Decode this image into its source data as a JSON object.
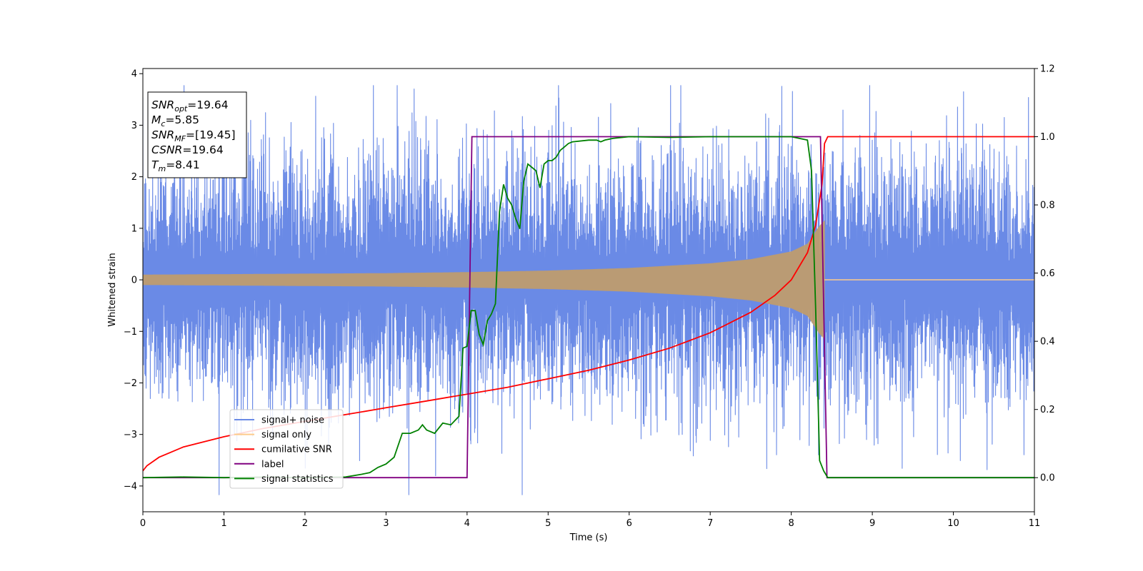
{
  "chart_data": {
    "type": "line",
    "xlabel": "Time (s)",
    "ylabel": "Whitened strain",
    "xlim": [
      0,
      11
    ],
    "ylim_left": [
      -4.5,
      4.1
    ],
    "ylim_right": [
      -0.1,
      1.2
    ],
    "x_ticks": [
      0,
      1,
      2,
      3,
      4,
      5,
      6,
      7,
      8,
      9,
      10,
      11
    ],
    "y_ticks_left": [
      -4,
      -3,
      -2,
      -1,
      0,
      1,
      2,
      3,
      4
    ],
    "y_tick_labels_left": [
      "−4",
      "−3",
      "−2",
      "−1",
      "0",
      "1",
      "2",
      "3",
      "4"
    ],
    "y_ticks_right": [
      0.0,
      0.2,
      0.4,
      0.6,
      0.8,
      1.0,
      1.2
    ],
    "y_tick_labels_right": [
      "0.0",
      "0.2",
      "0.4",
      "0.6",
      "0.8",
      "1.0",
      "1.2"
    ],
    "legend_position": "lower-left",
    "colors": {
      "noise": "#6a8ae6",
      "signal": "#fdcb8b",
      "signal_overlap": "#bf9c6e",
      "csnr": "#ff0000",
      "label": "#800080",
      "stats": "#008000"
    },
    "annotation": {
      "lines": [
        {
          "sym": "SNR",
          "sub": "opt",
          "val": "=19.64"
        },
        {
          "sym": "M",
          "sub": "c",
          "val": "=5.85"
        },
        {
          "sym": "SNR",
          "sub": "MF",
          "val": "=[19.45]"
        },
        {
          "sym": "CSNR",
          "sub": "",
          "val": "=19.64"
        },
        {
          "sym": "T",
          "sub": "m",
          "val": "=8.41"
        }
      ]
    },
    "series": [
      {
        "name": "signal+ noise",
        "axis": "left",
        "kind": "noise",
        "amplitude_envelope": 2.9,
        "max_peak": 3.77,
        "min_peak": -4.17
      },
      {
        "name": "signal only",
        "axis": "left",
        "kind": "chirp",
        "t_merge": 8.41,
        "x_env": [
          0,
          1,
          2,
          3,
          4,
          5,
          6,
          7,
          7.5,
          8,
          8.2,
          8.35,
          8.41
        ],
        "amp_env": [
          0.1,
          0.11,
          0.12,
          0.13,
          0.15,
          0.18,
          0.23,
          0.32,
          0.4,
          0.55,
          0.7,
          1.05,
          1.15
        ]
      },
      {
        "name": "cumilative SNR",
        "axis": "right",
        "x": [
          0,
          0.05,
          0.2,
          0.5,
          1,
          1.5,
          2,
          2.5,
          3,
          3.5,
          4,
          4.5,
          5,
          5.5,
          6,
          6.5,
          7,
          7.5,
          7.8,
          8,
          8.2,
          8.3,
          8.38,
          8.41,
          8.45,
          11
        ],
        "y": [
          0.02,
          0.035,
          0.06,
          0.09,
          0.12,
          0.145,
          0.165,
          0.185,
          0.205,
          0.225,
          0.245,
          0.265,
          0.29,
          0.315,
          0.345,
          0.38,
          0.425,
          0.485,
          0.535,
          0.58,
          0.66,
          0.74,
          0.86,
          0.98,
          1.0,
          1.0
        ]
      },
      {
        "name": "label",
        "axis": "right",
        "x": [
          0,
          4.0,
          4.06,
          8.36,
          8.44,
          11
        ],
        "y": [
          0,
          0,
          1.0,
          1.0,
          0,
          0
        ]
      },
      {
        "name": "signal statistics",
        "axis": "right",
        "x": [
          0,
          0.5,
          1,
          1.5,
          2,
          2.5,
          2.7,
          2.8,
          2.9,
          3.0,
          3.1,
          3.2,
          3.3,
          3.4,
          3.45,
          3.5,
          3.6,
          3.7,
          3.8,
          3.9,
          3.95,
          4.0,
          4.05,
          4.1,
          4.15,
          4.2,
          4.25,
          4.3,
          4.35,
          4.4,
          4.45,
          4.5,
          4.55,
          4.6,
          4.65,
          4.7,
          4.75,
          4.8,
          4.85,
          4.9,
          4.95,
          5.0,
          5.05,
          5.1,
          5.15,
          5.2,
          5.25,
          5.3,
          5.5,
          5.6,
          5.65,
          5.7,
          5.8,
          6.0,
          6.5,
          7.0,
          7.5,
          8.0,
          8.2,
          8.25,
          8.3,
          8.35,
          8.4,
          8.45,
          11
        ],
        "y": [
          0,
          0.002,
          0.0,
          0.002,
          0.0,
          0.002,
          0.01,
          0.015,
          0.03,
          0.04,
          0.06,
          0.13,
          0.13,
          0.14,
          0.155,
          0.14,
          0.13,
          0.16,
          0.155,
          0.18,
          0.38,
          0.385,
          0.49,
          0.49,
          0.42,
          0.39,
          0.46,
          0.48,
          0.51,
          0.78,
          0.86,
          0.82,
          0.8,
          0.76,
          0.73,
          0.87,
          0.92,
          0.91,
          0.9,
          0.85,
          0.92,
          0.93,
          0.93,
          0.94,
          0.96,
          0.97,
          0.98,
          0.985,
          0.99,
          0.99,
          0.985,
          0.99,
          0.995,
          1.0,
          0.998,
          1.0,
          1.0,
          1.0,
          0.99,
          0.9,
          0.5,
          0.05,
          0.02,
          0.0,
          0.0
        ]
      }
    ]
  }
}
